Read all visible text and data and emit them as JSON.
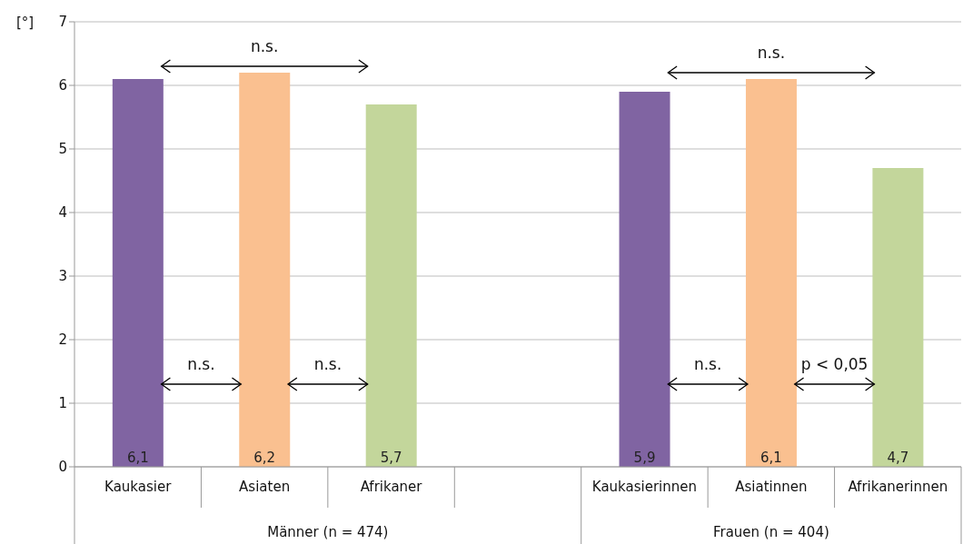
{
  "chart_data": {
    "type": "bar",
    "ylabel": "[°]",
    "categories": [
      "Kaukasier",
      "Asiaten",
      "Afrikaner",
      null,
      "Kaukasierinnen",
      "Asiatinnen",
      "Afrikanerinnen"
    ],
    "values": [
      6.1,
      6.2,
      5.7,
      null,
      5.9,
      6.1,
      4.7
    ],
    "colors": [
      "#8064a2",
      "#fac090",
      "#c3d69b",
      "#ffffff",
      "#8064a2",
      "#fac090",
      "#c3d69b"
    ],
    "value_labels": [
      "6,1",
      "6,2",
      "5,7",
      null,
      "5,9",
      "6,1",
      "4,7"
    ],
    "ylim": [
      0,
      7
    ],
    "yticks": [
      0,
      1,
      2,
      3,
      4,
      5,
      6,
      7
    ],
    "grid": "y",
    "annotations": [
      "n.s.",
      "n.s.",
      "n.s.",
      "n.s.",
      "n.s.",
      "p <  0,05",
      "Männer (n = 474)",
      "Frauen (n = 404)"
    ]
  }
}
